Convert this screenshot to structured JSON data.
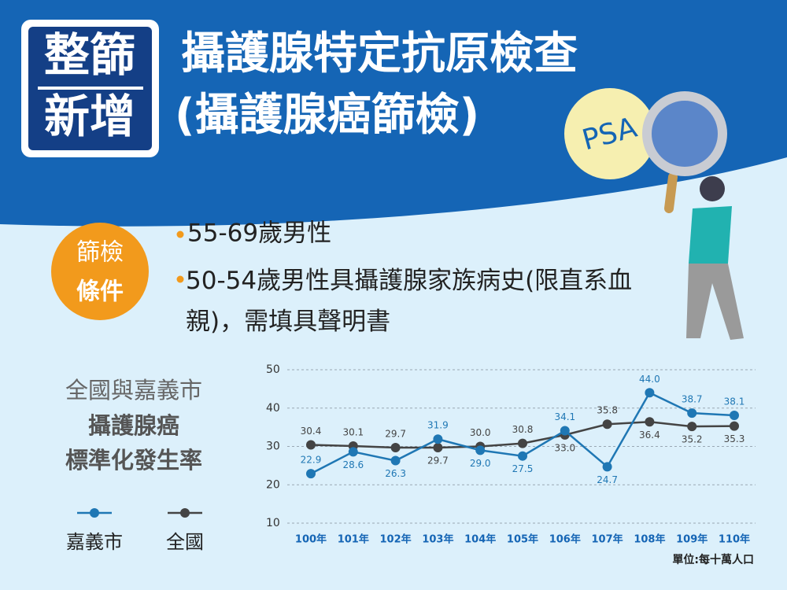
{
  "header": {
    "badge": [
      "整篩",
      "新增"
    ],
    "title": [
      "攝護腺特定抗原檢查",
      "(攝護腺癌篩檢)"
    ],
    "tag": "PSA"
  },
  "criteria": {
    "badge": [
      "篩檢",
      "條件"
    ],
    "items": [
      "55-69歲男性",
      "50-54歲男性具攝護腺家族病史(限直系血親)，需填具聲明書"
    ]
  },
  "chart_data": {
    "type": "line",
    "title": [
      "全國與嘉義市",
      "攝護腺癌",
      "標準化發生率"
    ],
    "note": "單位:每十萬人口",
    "categories": [
      "100年",
      "101年",
      "102年",
      "103年",
      "104年",
      "105年",
      "106年",
      "107年",
      "108年",
      "109年",
      "110年"
    ],
    "series": [
      {
        "name": "嘉義市",
        "color": "#1f77b4",
        "values": [
          22.9,
          28.6,
          26.3,
          31.9,
          29.0,
          27.5,
          34.1,
          24.7,
          44.0,
          38.7,
          38.1
        ],
        "value_labels": [
          "22.9",
          "28.6",
          "26.3",
          "31.9",
          "29.0",
          "27.5",
          "34.1",
          "24.7",
          "44.0",
          "38.7",
          "38.1"
        ]
      },
      {
        "name": "全國",
        "color": "#444444",
        "values": [
          30.4,
          30.1,
          29.7,
          29.7,
          30.0,
          30.8,
          33.0,
          35.8,
          36.4,
          35.2,
          35.3
        ],
        "value_labels": [
          "30.4",
          "30.1",
          "29.7",
          "29.7",
          "30.0",
          "30.8",
          "33.0",
          "35.8",
          "36.4",
          "35.2",
          "35.3"
        ]
      }
    ],
    "ylim": [
      10,
      50
    ],
    "yticks": [
      10,
      20,
      30,
      40,
      50
    ],
    "grid": true
  }
}
